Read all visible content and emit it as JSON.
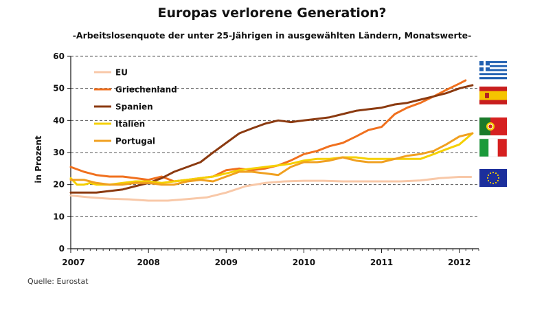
{
  "chart_data": {
    "type": "line",
    "title": "Europas verlorene Generation?",
    "subtitle": "-Arbeitslosenquote der unter 25-Jährigen in ausgewählten Ländern, Monatswerte-",
    "ylabel": "in Prozent",
    "xlabel": "",
    "source": "Quelle: Eurostat",
    "ylim": [
      0,
      60
    ],
    "yticks": [
      0,
      10,
      20,
      30,
      40,
      50,
      60
    ],
    "xlim": [
      2007,
      2012.25
    ],
    "xticks": [
      "2007",
      "2008",
      "2009",
      "2010",
      "2011",
      "2012"
    ],
    "grid": "horizontal dashed",
    "legend_position": "top-left",
    "flags": [
      "Griechenland",
      "Spanien",
      "Portugal",
      "Italien",
      "EU"
    ],
    "series": [
      {
        "name": "EU",
        "color": "#f8c8a8",
        "x": [
          2007.0,
          2007.25,
          2007.5,
          2007.75,
          2008.0,
          2008.25,
          2008.5,
          2008.75,
          2009.0,
          2009.25,
          2009.5,
          2009.75,
          2010.0,
          2010.25,
          2010.5,
          2010.75,
          2011.0,
          2011.25,
          2011.5,
          2011.75,
          2012.0,
          2012.15
        ],
        "values": [
          16.6,
          16.0,
          15.6,
          15.4,
          15.0,
          15.0,
          15.5,
          16.0,
          17.5,
          19.5,
          20.5,
          21.0,
          21.2,
          21.2,
          21.0,
          21.0,
          21.0,
          21.0,
          21.3,
          22.0,
          22.4,
          22.4
        ]
      },
      {
        "name": "Griechenland",
        "color": "#f0701e",
        "x": [
          2007.0,
          2007.17,
          2007.33,
          2007.5,
          2007.67,
          2007.83,
          2008.0,
          2008.17,
          2008.33,
          2008.5,
          2008.67,
          2008.83,
          2009.0,
          2009.17,
          2009.33,
          2009.5,
          2009.67,
          2009.83,
          2010.0,
          2010.17,
          2010.33,
          2010.5,
          2010.67,
          2010.83,
          2011.0,
          2011.17,
          2011.33,
          2011.5,
          2011.67,
          2011.83,
          2012.0,
          2012.08
        ],
        "values": [
          25.5,
          24.0,
          23.0,
          22.5,
          22.5,
          22.0,
          21.5,
          22.5,
          21.0,
          21.5,
          22.0,
          22.5,
          24.5,
          25.0,
          24.5,
          25.0,
          26.0,
          27.5,
          29.5,
          30.5,
          32.0,
          33.0,
          35.0,
          37.0,
          38.0,
          42.0,
          44.0,
          45.5,
          47.5,
          49.5,
          51.5,
          52.5
        ]
      },
      {
        "name": "Spanien",
        "color": "#8b3a10",
        "x": [
          2007.0,
          2007.17,
          2007.33,
          2007.5,
          2007.67,
          2007.83,
          2008.0,
          2008.17,
          2008.33,
          2008.5,
          2008.67,
          2008.83,
          2009.0,
          2009.17,
          2009.33,
          2009.5,
          2009.67,
          2009.83,
          2010.0,
          2010.17,
          2010.33,
          2010.5,
          2010.67,
          2010.83,
          2011.0,
          2011.17,
          2011.33,
          2011.5,
          2011.67,
          2011.83,
          2012.0,
          2012.17
        ],
        "values": [
          17.5,
          17.5,
          17.5,
          18.0,
          18.5,
          19.5,
          20.5,
          22.0,
          24.0,
          25.5,
          27.0,
          30.0,
          33.0,
          36.0,
          37.5,
          39.0,
          40.0,
          39.5,
          40.0,
          40.5,
          41.0,
          42.0,
          43.0,
          43.5,
          44.0,
          45.0,
          45.5,
          46.5,
          47.5,
          48.5,
          50.0,
          51.0
        ]
      },
      {
        "name": "Italien",
        "color": "#f5d000",
        "x": [
          2007.0,
          2007.08,
          2007.17,
          2007.25,
          2007.33,
          2007.5,
          2007.67,
          2007.83,
          2008.0,
          2008.17,
          2008.33,
          2008.5,
          2008.67,
          2008.83,
          2009.0,
          2009.17,
          2009.33,
          2009.5,
          2009.67,
          2009.83,
          2010.0,
          2010.17,
          2010.33,
          2010.5,
          2010.67,
          2010.83,
          2011.0,
          2011.17,
          2011.33,
          2011.5,
          2011.67,
          2011.83,
          2012.0,
          2012.17
        ],
        "values": [
          22.0,
          20.0,
          20.0,
          20.5,
          20.0,
          20.0,
          20.5,
          21.0,
          21.0,
          20.5,
          21.0,
          21.5,
          22.0,
          22.5,
          23.5,
          24.5,
          25.0,
          25.5,
          26.0,
          26.5,
          27.5,
          28.0,
          28.0,
          28.5,
          28.5,
          28.0,
          28.0,
          28.0,
          28.0,
          28.0,
          29.5,
          31.0,
          32.5,
          36.0
        ]
      },
      {
        "name": "Portugal",
        "color": "#f0a020",
        "x": [
          2007.0,
          2007.17,
          2007.33,
          2007.5,
          2007.67,
          2007.83,
          2008.0,
          2008.17,
          2008.33,
          2008.5,
          2008.67,
          2008.83,
          2009.0,
          2009.17,
          2009.33,
          2009.5,
          2009.67,
          2009.83,
          2010.0,
          2010.17,
          2010.33,
          2010.5,
          2010.67,
          2010.83,
          2011.0,
          2011.17,
          2011.33,
          2011.5,
          2011.67,
          2011.83,
          2012.0,
          2012.17
        ],
        "values": [
          21.5,
          21.5,
          20.5,
          20.0,
          20.0,
          20.5,
          20.5,
          20.0,
          20.0,
          21.0,
          21.5,
          21.0,
          22.5,
          24.0,
          24.0,
          23.5,
          23.0,
          25.5,
          27.0,
          27.0,
          27.5,
          28.5,
          27.5,
          27.0,
          27.0,
          28.0,
          29.0,
          29.5,
          30.5,
          32.5,
          35.0,
          36.0
        ]
      }
    ]
  }
}
